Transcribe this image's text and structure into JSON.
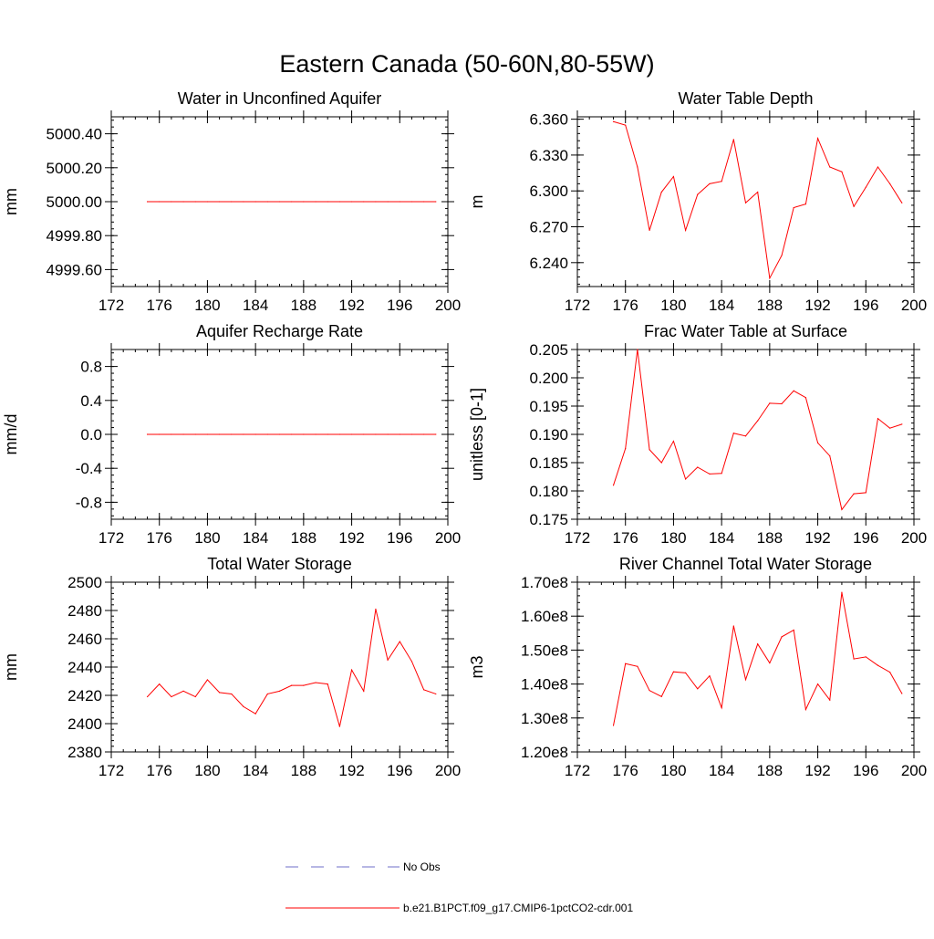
{
  "title": "Eastern Canada (50-60N,80-55W)",
  "colors": {
    "model": "#ff0000",
    "obs": "#6f6fc8",
    "axis": "#000000"
  },
  "legend": [
    {
      "label": "No Obs",
      "style": "dashed",
      "color": "#6f6fc8"
    },
    {
      "label": "b.e21.B1PCT.f09_g17.CMIP6-1pctCO2-cdr.001",
      "style": "solid",
      "color": "#ff0000"
    }
  ],
  "chart_data": [
    {
      "type": "line",
      "title": "Water in Unconfined Aquifer",
      "ylabel": "mm",
      "xlim": [
        172,
        200
      ],
      "ylim": [
        4999.5,
        5000.5
      ],
      "xticks": [
        "172",
        "176",
        "180",
        "184",
        "188",
        "192",
        "196",
        "200"
      ],
      "yticks": [
        "4999.60",
        "4999.80",
        "5000.00",
        "5000.20",
        "5000.40"
      ],
      "x": [
        175,
        176,
        177,
        178,
        179,
        180,
        181,
        182,
        183,
        184,
        185,
        186,
        187,
        188,
        189,
        190,
        191,
        192,
        193,
        194,
        195,
        196,
        197,
        198,
        199
      ],
      "series": [
        {
          "values": [
            5000,
            5000,
            5000,
            5000,
            5000,
            5000,
            5000,
            5000,
            5000,
            5000,
            5000,
            5000,
            5000,
            5000,
            5000,
            5000,
            5000,
            5000,
            5000,
            5000,
            5000,
            5000,
            5000,
            5000,
            5000
          ]
        }
      ]
    },
    {
      "type": "line",
      "title": "Water Table Depth",
      "ylabel": "m",
      "xlim": [
        172,
        200
      ],
      "ylim": [
        6.22,
        6.362
      ],
      "xticks": [
        "172",
        "176",
        "180",
        "184",
        "188",
        "192",
        "196",
        "200"
      ],
      "yticks": [
        "6.240",
        "6.270",
        "6.300",
        "6.330",
        "6.360"
      ],
      "x": [
        175,
        176,
        177,
        178,
        179,
        180,
        181,
        182,
        183,
        184,
        185,
        186,
        187,
        188,
        189,
        190,
        191,
        192,
        193,
        194,
        195,
        196,
        197,
        198,
        199
      ],
      "series": [
        {
          "values": [
            6.358,
            6.355,
            6.32,
            6.267,
            6.299,
            6.312,
            6.267,
            6.297,
            6.306,
            6.308,
            6.343,
            6.29,
            6.299,
            6.227,
            6.246,
            6.286,
            6.289,
            6.344,
            6.32,
            6.316,
            6.287,
            6.303,
            6.32,
            6.306,
            6.29
          ]
        }
      ]
    },
    {
      "type": "line",
      "title": "Aquifer Recharge Rate",
      "ylabel": "mm/d",
      "xlim": [
        172,
        200
      ],
      "ylim": [
        -1,
        1
      ],
      "xticks": [
        "172",
        "176",
        "180",
        "184",
        "188",
        "192",
        "196",
        "200"
      ],
      "yticks": [
        "-0.8",
        "-0.4",
        "0.0",
        "0.4",
        "0.8"
      ],
      "x": [
        175,
        176,
        177,
        178,
        179,
        180,
        181,
        182,
        183,
        184,
        185,
        186,
        187,
        188,
        189,
        190,
        191,
        192,
        193,
        194,
        195,
        196,
        197,
        198,
        199
      ],
      "series": [
        {
          "values": [
            0,
            0,
            0,
            0,
            0,
            0,
            0,
            0,
            0,
            0,
            0,
            0,
            0,
            0,
            0,
            0,
            0,
            0,
            0,
            0,
            0,
            0,
            0,
            0,
            0
          ]
        }
      ]
    },
    {
      "type": "line",
      "title": "Frac Water Table at Surface",
      "ylabel": "unitless [0-1]",
      "xlim": [
        172,
        200
      ],
      "ylim": [
        0.175,
        0.205
      ],
      "xticks": [
        "172",
        "176",
        "180",
        "184",
        "188",
        "192",
        "196",
        "200"
      ],
      "yticks": [
        "0.175",
        "0.180",
        "0.185",
        "0.190",
        "0.195",
        "0.200",
        "0.205"
      ],
      "x": [
        175,
        176,
        177,
        178,
        179,
        180,
        181,
        182,
        183,
        184,
        185,
        186,
        187,
        188,
        189,
        190,
        191,
        192,
        193,
        194,
        195,
        196,
        197,
        198,
        199
      ],
      "series": [
        {
          "values": [
            0.181,
            0.1875,
            0.205,
            0.1873,
            0.185,
            0.1888,
            0.1821,
            0.1842,
            0.183,
            0.1831,
            0.1902,
            0.1897,
            0.1924,
            0.1955,
            0.1954,
            0.1977,
            0.1965,
            0.1885,
            0.1862,
            0.1767,
            0.1795,
            0.1797,
            0.1928,
            0.1911,
            0.1918
          ]
        }
      ]
    },
    {
      "type": "line",
      "title": "Total Water Storage",
      "ylabel": "mm",
      "xlim": [
        172,
        200
      ],
      "ylim": [
        2380,
        2500
      ],
      "xticks": [
        "172",
        "176",
        "180",
        "184",
        "188",
        "192",
        "196",
        "200"
      ],
      "yticks": [
        "2380",
        "2400",
        "2420",
        "2440",
        "2460",
        "2480",
        "2500"
      ],
      "x": [
        175,
        176,
        177,
        178,
        179,
        180,
        181,
        182,
        183,
        184,
        185,
        186,
        187,
        188,
        189,
        190,
        191,
        192,
        193,
        194,
        195,
        196,
        197,
        198,
        199
      ],
      "series": [
        {
          "values": [
            2419,
            2428,
            2419,
            2423,
            2419,
            2431,
            2422,
            2421,
            2412,
            2407,
            2421,
            2423,
            2427,
            2427,
            2429,
            2428,
            2398,
            2438,
            2423,
            2481,
            2445,
            2458,
            2444,
            2424,
            2421
          ]
        }
      ]
    },
    {
      "type": "line",
      "title": "River Channel Total Water Storage",
      "ylabel": "m3",
      "xlim": [
        172,
        200
      ],
      "ylim": [
        120000000,
        170000000
      ],
      "xticks": [
        "172",
        "176",
        "180",
        "184",
        "188",
        "192",
        "196",
        "200"
      ],
      "yticks": [
        "1.20e8",
        "1.30e8",
        "1.40e8",
        "1.50e8",
        "1.60e8",
        "1.70e8"
      ],
      "x": [
        175,
        176,
        177,
        178,
        179,
        180,
        181,
        182,
        183,
        184,
        185,
        186,
        187,
        188,
        189,
        190,
        191,
        192,
        193,
        194,
        195,
        196,
        197,
        198,
        199
      ],
      "series": [
        {
          "values": [
            127800000,
            146000000,
            145200000,
            138100000,
            136300000,
            143600000,
            143300000,
            138600000,
            142400000,
            133000000,
            157100000,
            141300000,
            151800000,
            146200000,
            153900000,
            155900000,
            132500000,
            140000000,
            135300000,
            167000000,
            147400000,
            148000000,
            145500000,
            143500000,
            137200000
          ]
        }
      ]
    }
  ]
}
